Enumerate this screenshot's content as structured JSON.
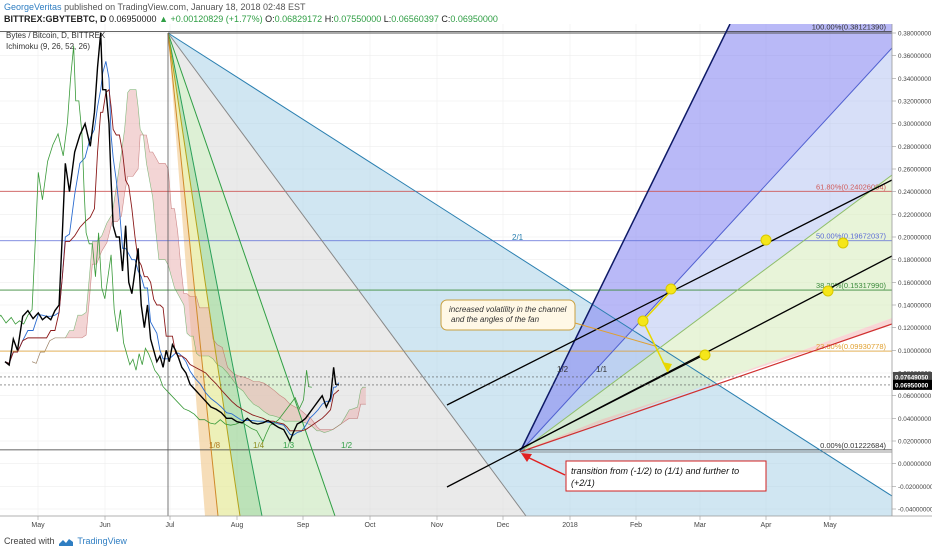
{
  "header": {
    "author": "GeorgeVeritas",
    "published_text": "published on TradingView.com, January 18, 2018 02:48 EST"
  },
  "quote": {
    "symbol": "BITTREX:GBYTEBTC, D",
    "price": "0.06950000",
    "change": "▲ +0.00120829 (+1.77%)",
    "o_label": "O:",
    "o": "0.06829172",
    "h_label": "H:",
    "h": "0.07550000",
    "l_label": "L:",
    "l": "0.06560397",
    "c_label": "C:",
    "c": "0.06950000"
  },
  "chart_data": {
    "type": "line",
    "title": "Bytes / Bitcoin, D, BITTREX",
    "indicator": "Ichimoku (9, 26, 52, 26)",
    "x_ticks": [
      "May",
      "Jun",
      "Jul",
      "Aug",
      "Sep",
      "Oct",
      "Nov",
      "Dec",
      "2018",
      "Feb",
      "Mar",
      "Apr",
      "May"
    ],
    "y_ticks": [
      "0.38000000",
      "0.36000000",
      "0.34000000",
      "0.32000000",
      "0.30000000",
      "0.28000000",
      "0.26000000",
      "0.24000000",
      "0.22000000",
      "0.20000000",
      "0.18000000",
      "0.16000000",
      "0.14000000",
      "0.12000000",
      "0.10000000",
      "0.08000000",
      "0.06000000",
      "0.04000000",
      "0.02000000",
      "0.00000000",
      "-0.02000000",
      "-0.04000000"
    ],
    "ylim": [
      -0.046,
      0.386
    ],
    "price_labels": [
      "0.07649050",
      "0.06950000"
    ],
    "price_values": [
      0.0765,
      0.0695
    ],
    "price_series": [
      {
        "d": 0,
        "v": 0.09
      },
      {
        "d": 4,
        "v": 0.087
      },
      {
        "d": 8,
        "v": 0.11
      },
      {
        "d": 12,
        "v": 0.1
      },
      {
        "d": 17,
        "v": 0.13
      },
      {
        "d": 22,
        "v": 0.135
      },
      {
        "d": 27,
        "v": 0.128
      },
      {
        "d": 32,
        "v": 0.133
      },
      {
        "d": 36,
        "v": 0.127
      },
      {
        "d": 40,
        "v": 0.13
      },
      {
        "d": 44,
        "v": 0.127
      },
      {
        "d": 48,
        "v": 0.135
      },
      {
        "d": 52,
        "v": 0.14
      },
      {
        "d": 55,
        "v": 0.2
      },
      {
        "d": 58,
        "v": 0.265
      },
      {
        "d": 62,
        "v": 0.24
      },
      {
        "d": 67,
        "v": 0.275
      },
      {
        "d": 72,
        "v": 0.29
      },
      {
        "d": 77,
        "v": 0.3
      },
      {
        "d": 82,
        "v": 0.28
      },
      {
        "d": 86,
        "v": 0.31
      },
      {
        "d": 89,
        "v": 0.35
      },
      {
        "d": 92,
        "v": 0.38
      },
      {
        "d": 94,
        "v": 0.33
      },
      {
        "d": 97,
        "v": 0.33
      },
      {
        "d": 100,
        "v": 0.3
      },
      {
        "d": 102,
        "v": 0.25
      },
      {
        "d": 104,
        "v": 0.21
      },
      {
        "d": 107,
        "v": 0.2
      },
      {
        "d": 110,
        "v": 0.2
      },
      {
        "d": 113,
        "v": 0.17
      },
      {
        "d": 116,
        "v": 0.21
      },
      {
        "d": 119,
        "v": 0.16
      },
      {
        "d": 122,
        "v": 0.15
      },
      {
        "d": 125,
        "v": 0.17
      },
      {
        "d": 128,
        "v": 0.19
      },
      {
        "d": 131,
        "v": 0.14
      },
      {
        "d": 134,
        "v": 0.12
      },
      {
        "d": 137,
        "v": 0.14
      },
      {
        "d": 140,
        "v": 0.11
      },
      {
        "d": 143,
        "v": 0.1
      },
      {
        "d": 146,
        "v": 0.09
      },
      {
        "d": 149,
        "v": 0.095
      },
      {
        "d": 152,
        "v": 0.085
      },
      {
        "d": 155,
        "v": 0.1
      },
      {
        "d": 158,
        "v": 0.09
      },
      {
        "d": 161,
        "v": 0.105
      },
      {
        "d": 164,
        "v": 0.1
      },
      {
        "d": 167,
        "v": 0.093
      },
      {
        "d": 170,
        "v": 0.085
      },
      {
        "d": 174,
        "v": 0.08
      },
      {
        "d": 178,
        "v": 0.07
      },
      {
        "d": 183,
        "v": 0.065
      },
      {
        "d": 188,
        "v": 0.06
      },
      {
        "d": 193,
        "v": 0.055
      },
      {
        "d": 198,
        "v": 0.05
      },
      {
        "d": 203,
        "v": 0.048
      },
      {
        "d": 208,
        "v": 0.045
      },
      {
        "d": 213,
        "v": 0.04
      },
      {
        "d": 218,
        "v": 0.04
      },
      {
        "d": 223,
        "v": 0.037
      },
      {
        "d": 228,
        "v": 0.036
      },
      {
        "d": 233,
        "v": 0.04
      },
      {
        "d": 238,
        "v": 0.036
      },
      {
        "d": 243,
        "v": 0.035
      },
      {
        "d": 248,
        "v": 0.036
      },
      {
        "d": 253,
        "v": 0.038
      },
      {
        "d": 258,
        "v": 0.035
      },
      {
        "d": 263,
        "v": 0.032
      },
      {
        "d": 268,
        "v": 0.03
      },
      {
        "d": 271,
        "v": 0.025
      },
      {
        "d": 274,
        "v": 0.02
      },
      {
        "d": 277,
        "v": 0.027
      },
      {
        "d": 281,
        "v": 0.035
      },
      {
        "d": 285,
        "v": 0.037
      },
      {
        "d": 289,
        "v": 0.04
      },
      {
        "d": 293,
        "v": 0.045
      },
      {
        "d": 297,
        "v": 0.05
      },
      {
        "d": 301,
        "v": 0.055
      },
      {
        "d": 305,
        "v": 0.06
      },
      {
        "d": 309,
        "v": 0.05
      },
      {
        "d": 313,
        "v": 0.058
      },
      {
        "d": 316,
        "v": 0.085
      },
      {
        "d": 318,
        "v": 0.07
      },
      {
        "d": 321,
        "v": 0.0695
      }
    ],
    "fib_levels": [
      {
        "label": "100.00%(0.38121390)",
        "value": 0.3812,
        "color": "#333333"
      },
      {
        "label": "61.80%(0.24026084)",
        "value": 0.2403,
        "color": "#d05a5a"
      },
      {
        "label": "50.00%(0.19672037)",
        "value": 0.1967,
        "color": "#5b6bd6"
      },
      {
        "label": "38.20%(0.15317990)",
        "value": 0.1532,
        "color": "#3a8a3a"
      },
      {
        "label": "23.60%(0.09930778)",
        "value": 0.0993,
        "color": "#e0a030"
      },
      {
        "label": "0.00%(0.01222684)",
        "value": 0.0122,
        "color": "#333333"
      }
    ],
    "fan_labels": [
      "1/8",
      "1/4",
      "1/3",
      "1/2",
      "2/1",
      "1/2",
      "1/1"
    ],
    "annotations": {
      "volatility": "increased volatility in the channel and the angles of the fan",
      "transition": "transition from  (-1/2) to (1/1) and further to (+2/1)"
    }
  },
  "footer": {
    "created_with": "Created with",
    "brand": "TradingView"
  },
  "colors": {
    "price": "#000000",
    "tenkan": "#2b6cd0",
    "kijun": "#8b1a1a",
    "chikou": "#3a9a3a",
    "cloud_red": "#e9b3b3",
    "cloud_green": "#b9dfb3",
    "fan_blue": "#2a7fb0",
    "yellow": "#f5e61a"
  }
}
